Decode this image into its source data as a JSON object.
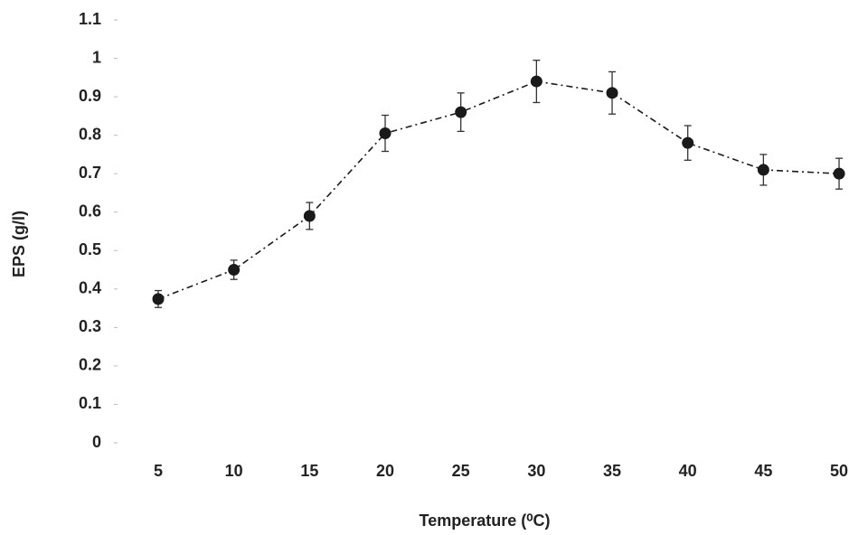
{
  "chart_data": {
    "type": "line",
    "x_label": "Temperature (⁰C)",
    "y_label": "EPS (g/l)",
    "categories": [
      "5",
      "10",
      "15",
      "20",
      "25",
      "30",
      "35",
      "40",
      "45",
      "50"
    ],
    "values": [
      0.374,
      0.45,
      0.59,
      0.805,
      0.86,
      0.94,
      0.91,
      0.78,
      0.71,
      0.7
    ],
    "errors": [
      0.022,
      0.025,
      0.035,
      0.047,
      0.05,
      0.055,
      0.055,
      0.045,
      0.04,
      0.04
    ],
    "color": "#1a1a1a",
    "ylim": [
      0,
      1.1
    ],
    "yticks": [
      0,
      0.1,
      0.2,
      0.3,
      0.4,
      0.5,
      0.6,
      0.7,
      0.8,
      0.9,
      1,
      1.1
    ],
    "grid": false
  }
}
